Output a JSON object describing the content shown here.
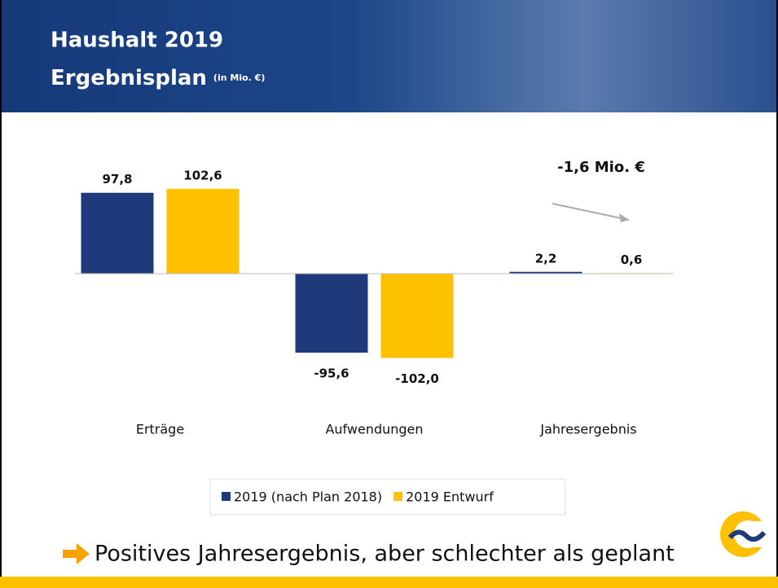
{
  "chart_data": {
    "type": "bar",
    "title": "Haushalt 2019",
    "subtitle": "Ergebnisplan",
    "unit_note": "(in Mio. €)",
    "categories": [
      "Erträge",
      "Aufwendungen",
      "Jahresergebnis"
    ],
    "series": [
      {
        "name": "2019 (nach Plan 2018)",
        "color": "#1f3a7a",
        "values": [
          97.8,
          -95.6,
          2.2
        ],
        "value_labels": [
          "97,8",
          "-95,6",
          "2,2"
        ]
      },
      {
        "name": "2019 Entwurf",
        "color": "#ffc000",
        "values": [
          102.6,
          -102.0,
          0.6
        ],
        "value_labels": [
          "102,6",
          "-102,0",
          "0,6"
        ]
      }
    ],
    "annotation": "-1,6 Mio. €",
    "legend": "bottom",
    "footer_text": "Positives Jahresergebnis, aber schlechter als geplant"
  }
}
